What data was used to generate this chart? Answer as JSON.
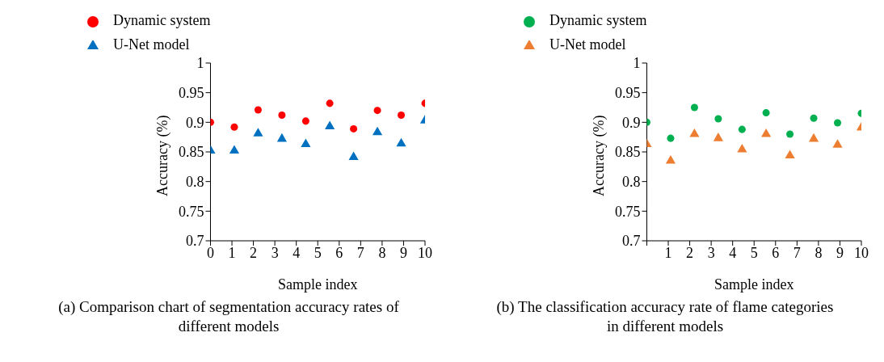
{
  "chart_data": [
    {
      "type": "scatter",
      "title": "(a) Comparison chart of segmentation accuracy rates of different models",
      "xlabel": "Sample index",
      "ylabel": "Accuracy (%)",
      "x": [
        0,
        1.11,
        2.22,
        3.33,
        4.44,
        5.56,
        6.67,
        7.78,
        8.89,
        10
      ],
      "series": [
        {
          "name": "U-Net model",
          "color": "#0070c0",
          "marker": "triangle",
          "values": [
            0.852,
            0.852,
            0.881,
            0.872,
            0.863,
            0.893,
            0.841,
            0.883,
            0.864,
            0.903
          ]
        },
        {
          "name": "Dynamic system",
          "color": "#ff0000",
          "marker": "circle",
          "values": [
            0.9,
            0.892,
            0.921,
            0.912,
            0.902,
            0.932,
            0.889,
            0.92,
            0.912,
            0.932
          ]
        }
      ],
      "xlim": [
        0,
        10
      ],
      "xticks": [
        0,
        1,
        2,
        3,
        4,
        5,
        6,
        7,
        8,
        9,
        10
      ],
      "ylim": [
        0.7,
        1
      ],
      "yticks": [
        0.7,
        0.75,
        0.8,
        0.85,
        0.9,
        0.95,
        1
      ],
      "grid": false,
      "legend": "top left"
    },
    {
      "type": "scatter",
      "title": "(b) The classification accuracy rate of flame categories in different models",
      "xlabel": "Sample index",
      "ylabel": "Accuracy (%)",
      "x": [
        0,
        1.11,
        2.22,
        3.33,
        4.44,
        5.56,
        6.67,
        7.78,
        8.89,
        10
      ],
      "series": [
        {
          "name": "U-Net model",
          "color": "#ed7d31",
          "marker": "triangle",
          "values": [
            0.863,
            0.835,
            0.88,
            0.873,
            0.854,
            0.88,
            0.844,
            0.872,
            0.862,
            0.891
          ]
        },
        {
          "name": "Dynamic system",
          "color": "#00b050",
          "marker": "circle",
          "values": [
            0.9,
            0.873,
            0.925,
            0.906,
            0.888,
            0.916,
            0.88,
            0.907,
            0.899,
            0.915
          ]
        }
      ],
      "xlim": [
        0,
        10
      ],
      "xticks": [
        {
          "value": 0,
          "label": null
        },
        1,
        2,
        3,
        4,
        5,
        6,
        7,
        8,
        9,
        10
      ],
      "ylim": [
        0.7,
        1
      ],
      "yticks": [
        0.7,
        0.75,
        0.8,
        0.85,
        0.9,
        0.95,
        1
      ],
      "grid": false,
      "legend": "top left"
    }
  ]
}
